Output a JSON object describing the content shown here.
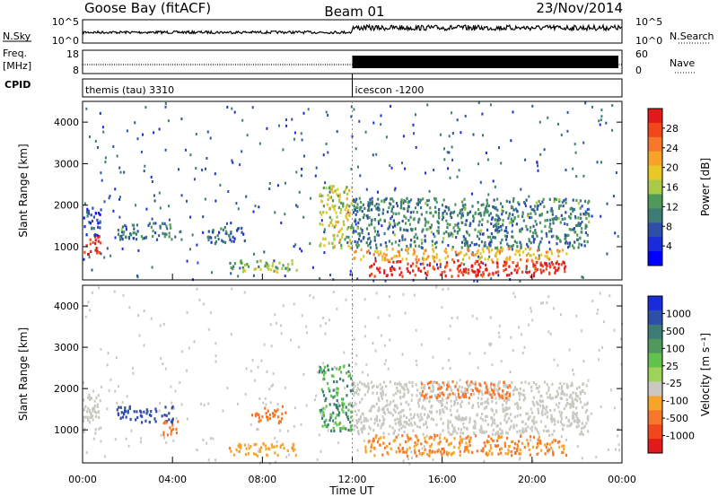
{
  "header": {
    "station": "Goose Bay (fitACF)",
    "beam": "Beam 01",
    "date": "23/Nov/2014"
  },
  "strips": {
    "nsky_label": "N.Sky",
    "nsky_ticks": [
      "10^5",
      "10^0"
    ],
    "nsearch_label": "N.Search",
    "nsearch_ticks": [
      "10^5",
      "10^0"
    ],
    "freq_label": "Freq.",
    "freq_unit": "[MHz]",
    "freq_ticks": [
      "18",
      "8"
    ],
    "nave_label": "Nave",
    "nave_ticks": [
      "60",
      "0"
    ],
    "cpid_label": "CPID",
    "cpid_segments": [
      {
        "name": "themis (tau) 3310",
        "start_hour": 0,
        "end_hour": 12
      },
      {
        "name": "icescon -1200",
        "start_hour": 12,
        "end_hour": 24
      }
    ]
  },
  "time_axis": {
    "label": "Time UT",
    "ticks": [
      "00:00",
      "04:00",
      "08:00",
      "12:00",
      "16:00",
      "20:00",
      "00:00"
    ],
    "range_hours": [
      0,
      24
    ]
  },
  "chart_data": [
    {
      "type": "heatmap",
      "title": "",
      "xlabel": "Time UT",
      "ylabel": "Slant Range [km]",
      "xlim": [
        0,
        24
      ],
      "ylim": [
        200,
        4500
      ],
      "yticks": [
        1000,
        2000,
        3000,
        4000
      ],
      "colorbar": {
        "label": "Power [dB]",
        "ticks": [
          "28",
          "24",
          "20",
          "16",
          "12",
          "8",
          "4"
        ],
        "colors": [
          "#e21a1a",
          "#f2461b",
          "#f7782b",
          "#f9a22a",
          "#e9c825",
          "#a9c948",
          "#4f9a5a",
          "#3b7d74",
          "#2e4fa8",
          "#1a2bd9",
          "#0000ff"
        ]
      },
      "regions": [
        {
          "start_hour": 0.0,
          "end_hour": 0.8,
          "range_min": 850,
          "range_max": 1300,
          "value": 28
        },
        {
          "start_hour": 0.0,
          "end_hour": 0.8,
          "range_min": 1300,
          "range_max": 2000,
          "value": 6
        },
        {
          "start_hour": 1.5,
          "end_hour": 4.0,
          "range_min": 1200,
          "range_max": 1600,
          "value": 10
        },
        {
          "start_hour": 5.5,
          "end_hour": 7.2,
          "range_min": 1100,
          "range_max": 1500,
          "value": 8
        },
        {
          "start_hour": 6.5,
          "end_hour": 9.5,
          "range_min": 400,
          "range_max": 700,
          "value": 14
        },
        {
          "start_hour": 10.5,
          "end_hour": 12.0,
          "range_min": 1000,
          "range_max": 2500,
          "value": 16
        },
        {
          "start_hour": 12.0,
          "end_hour": 22.5,
          "range_min": 1000,
          "range_max": 2200,
          "value": 10
        },
        {
          "start_hour": 12.5,
          "end_hour": 21.5,
          "range_min": 300,
          "range_max": 700,
          "value": 28
        },
        {
          "start_hour": 12.0,
          "end_hour": 21.5,
          "range_min": 700,
          "range_max": 1000,
          "value": 20
        }
      ]
    },
    {
      "type": "heatmap",
      "title": "",
      "xlabel": "Time UT",
      "ylabel": "Slant Range [km]",
      "xlim": [
        0,
        24
      ],
      "ylim": [
        200,
        4500
      ],
      "yticks": [
        1000,
        2000,
        3000,
        4000
      ],
      "colorbar": {
        "label": "Velocity [m s⁻¹]",
        "ticks": [
          "1000",
          "500",
          "100",
          "25",
          "-25",
          "-100",
          "-500",
          "-1000"
        ],
        "colors": [
          "#1a2bd9",
          "#2e4fa8",
          "#3b7d74",
          "#4f9a5a",
          "#63c24e",
          "#9ed35b",
          "#c9c9c1",
          "#f7a52a",
          "#f7782b",
          "#f2461b",
          "#e21a1a"
        ]
      },
      "regions": [
        {
          "start_hour": 0.0,
          "end_hour": 0.8,
          "range_min": 900,
          "range_max": 1900,
          "value": 0
        },
        {
          "start_hour": 1.5,
          "end_hour": 4.0,
          "range_min": 1200,
          "range_max": 1600,
          "value": 500
        },
        {
          "start_hour": 3.5,
          "end_hour": 4.2,
          "range_min": 900,
          "range_max": 1300,
          "value": -200
        },
        {
          "start_hour": 7.5,
          "end_hour": 9.0,
          "range_min": 1200,
          "range_max": 1600,
          "value": -300
        },
        {
          "start_hour": 6.5,
          "end_hour": 9.5,
          "range_min": 400,
          "range_max": 700,
          "value": -80
        },
        {
          "start_hour": 10.5,
          "end_hour": 12.0,
          "range_min": 1000,
          "range_max": 2600,
          "value": 60
        },
        {
          "start_hour": 12.0,
          "end_hour": 22.5,
          "range_min": 900,
          "range_max": 2200,
          "value": 0
        },
        {
          "start_hour": 12.5,
          "end_hour": 21.5,
          "range_min": 400,
          "range_max": 900,
          "value": -100
        },
        {
          "start_hour": 15.0,
          "end_hour": 19.0,
          "range_min": 1800,
          "range_max": 2200,
          "value": -300
        }
      ]
    }
  ]
}
